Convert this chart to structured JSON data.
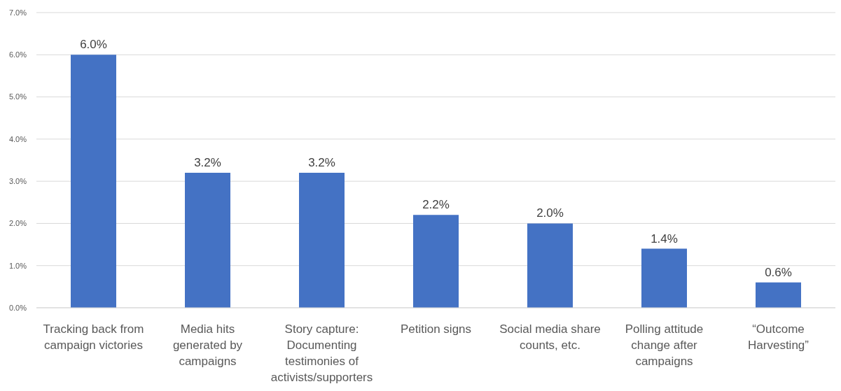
{
  "chart_data": {
    "type": "bar",
    "categories": [
      "Tracking back from campaign victories",
      "Media hits generated by campaigns",
      "Story capture: Documenting testimonies of activists/supporters",
      "Petition signs",
      "Social media share counts, etc.",
      "Polling attitude change after campaigns",
      "“Outcome Harvesting”"
    ],
    "values": [
      6.0,
      3.2,
      3.2,
      2.2,
      2.0,
      1.4,
      0.6
    ],
    "value_labels": [
      "6.0%",
      "3.2%",
      "3.2%",
      "2.2%",
      "2.0%",
      "1.4%",
      "0.6%"
    ],
    "color": "#4472c4",
    "ylim": [
      0,
      7
    ],
    "yticks": [
      {
        "value": 0,
        "label": "0.0%"
      },
      {
        "value": 1,
        "label": "1.0%"
      },
      {
        "value": 2,
        "label": "2.0%"
      },
      {
        "value": 3,
        "label": "3.0%"
      },
      {
        "value": 4,
        "label": "4.0%"
      },
      {
        "value": 5,
        "label": "5.0%"
      },
      {
        "value": 6,
        "label": "6.0%"
      },
      {
        "value": 7,
        "label": "7.0%"
      }
    ],
    "grid": "y"
  }
}
